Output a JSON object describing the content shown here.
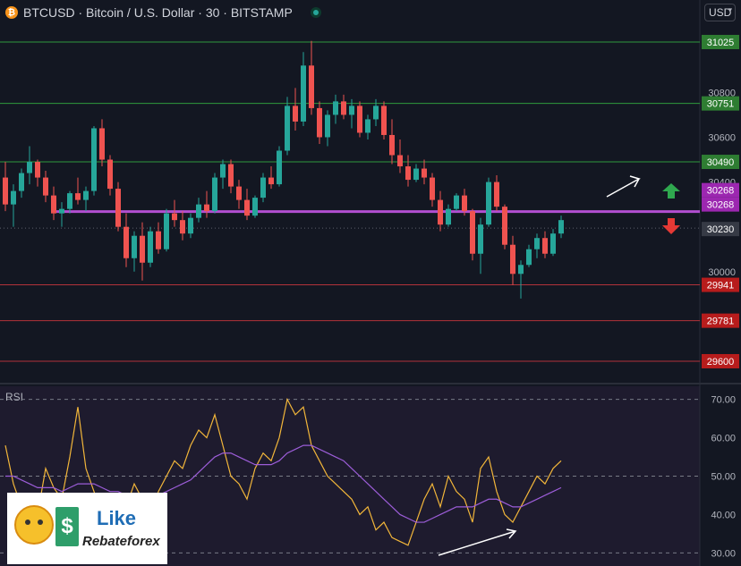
{
  "header": {
    "coin_symbol": "₿",
    "title": "BTCUSD · Bitcoin / U.S. Dollar · 30 · BITSTAMP",
    "status_icon": "market-open-dot-icon"
  },
  "currency_select": {
    "value": "USD",
    "icon": "chevron-down-icon"
  },
  "colors": {
    "background": "#131722",
    "up": "#26a69a",
    "down": "#ef5350",
    "support_line": "#b2323a",
    "resistance_line": "#2f9a3d",
    "pivot_line": "#b24fd1",
    "rsi": "#f2b63a",
    "rsi_ma": "#9c5dd8"
  },
  "price_axis": {
    "ticks": [
      "30800",
      "30600",
      "30400",
      "30200",
      "30000"
    ],
    "resistance_levels": [
      "31025",
      "30751",
      "30490"
    ],
    "pivot_labels": [
      "30268",
      "30268"
    ],
    "current_price": "30230",
    "support_levels": [
      "29941",
      "29781",
      "29600"
    ]
  },
  "chart_data": {
    "type": "candlestick",
    "symbol": "BTCUSD",
    "interval": "30",
    "ylim": [
      29560,
      31045
    ],
    "ohlc": [
      [
        30420,
        30490,
        30270,
        30300
      ],
      [
        30300,
        30390,
        30200,
        30360
      ],
      [
        30360,
        30460,
        30330,
        30440
      ],
      [
        30440,
        30560,
        30390,
        30490
      ],
      [
        30490,
        30500,
        30380,
        30420
      ],
      [
        30420,
        30450,
        30310,
        30340
      ],
      [
        30340,
        30380,
        30230,
        30260
      ],
      [
        30260,
        30310,
        30200,
        30280
      ],
      [
        30280,
        30360,
        30260,
        30350
      ],
      [
        30350,
        30420,
        30300,
        30320
      ],
      [
        30320,
        30380,
        30270,
        30360
      ],
      [
        30360,
        30650,
        30340,
        30640
      ],
      [
        30640,
        30680,
        30470,
        30500
      ],
      [
        30500,
        30520,
        30340,
        30370
      ],
      [
        30370,
        30400,
        30180,
        30200
      ],
      [
        30200,
        30260,
        30020,
        30060
      ],
      [
        30060,
        30180,
        30000,
        30160
      ],
      [
        30160,
        30220,
        29960,
        30040
      ],
      [
        30040,
        30200,
        30020,
        30180
      ],
      [
        30180,
        30220,
        30080,
        30100
      ],
      [
        30100,
        30280,
        30090,
        30260
      ],
      [
        30260,
        30320,
        30200,
        30230
      ],
      [
        30230,
        30270,
        30140,
        30170
      ],
      [
        30170,
        30260,
        30150,
        30240
      ],
      [
        30240,
        30330,
        30220,
        30300
      ],
      [
        30300,
        30360,
        30240,
        30270
      ],
      [
        30270,
        30440,
        30260,
        30420
      ],
      [
        30420,
        30500,
        30370,
        30480
      ],
      [
        30480,
        30500,
        30350,
        30380
      ],
      [
        30380,
        30410,
        30280,
        30320
      ],
      [
        30320,
        30370,
        30230,
        30250
      ],
      [
        30250,
        30340,
        30240,
        30330
      ],
      [
        30330,
        30440,
        30310,
        30420
      ],
      [
        30420,
        30470,
        30370,
        30390
      ],
      [
        30390,
        30560,
        30380,
        30540
      ],
      [
        30540,
        30780,
        30520,
        30740
      ],
      [
        30740,
        30820,
        30630,
        30670
      ],
      [
        30670,
        30980,
        30650,
        30920
      ],
      [
        30920,
        31030,
        30700,
        30730
      ],
      [
        30730,
        30760,
        30570,
        30600
      ],
      [
        30600,
        30720,
        30560,
        30700
      ],
      [
        30700,
        30790,
        30660,
        30760
      ],
      [
        30760,
        30790,
        30680,
        30700
      ],
      [
        30700,
        30770,
        30640,
        30740
      ],
      [
        30740,
        30760,
        30600,
        30620
      ],
      [
        30620,
        30700,
        30590,
        30680
      ],
      [
        30680,
        30770,
        30650,
        30740
      ],
      [
        30740,
        30760,
        30590,
        30610
      ],
      [
        30610,
        30680,
        30480,
        30520
      ],
      [
        30520,
        30590,
        30440,
        30470
      ],
      [
        30470,
        30520,
        30380,
        30410
      ],
      [
        30410,
        30480,
        30400,
        30460
      ],
      [
        30460,
        30500,
        30390,
        30420
      ],
      [
        30420,
        30440,
        30290,
        30320
      ],
      [
        30320,
        30360,
        30180,
        30210
      ],
      [
        30210,
        30300,
        30200,
        30280
      ],
      [
        30280,
        30350,
        30270,
        30340
      ],
      [
        30340,
        30370,
        30250,
        30270
      ],
      [
        30270,
        30280,
        30050,
        30080
      ],
      [
        30080,
        30240,
        29990,
        30210
      ],
      [
        30210,
        30420,
        30200,
        30400
      ],
      [
        30400,
        30430,
        30270,
        30290
      ],
      [
        30290,
        30300,
        30100,
        30120
      ],
      [
        30120,
        30160,
        29940,
        29990
      ],
      [
        29990,
        30050,
        29880,
        30030
      ],
      [
        30030,
        30120,
        30020,
        30100
      ],
      [
        30100,
        30170,
        30060,
        30150
      ],
      [
        30150,
        30180,
        30060,
        30080
      ],
      [
        30080,
        30190,
        30070,
        30170
      ],
      [
        30170,
        30250,
        30150,
        30230
      ]
    ],
    "horizontal_levels": [
      31025,
      30751,
      30490,
      30268,
      29941,
      29781,
      29600
    ],
    "current_price": 30230,
    "rsi": {
      "label": "RSI",
      "ylim": [
        28,
        72
      ],
      "ticks": [
        "70.00",
        "60.00",
        "50.00",
        "40.00",
        "30.00"
      ],
      "values": [
        58,
        48,
        42,
        36,
        40,
        52,
        47,
        44,
        55,
        68,
        52,
        46,
        40,
        38,
        44,
        42,
        48,
        44,
        40,
        46,
        50,
        54,
        52,
        58,
        62,
        60,
        66,
        58,
        50,
        48,
        44,
        52,
        56,
        54,
        60,
        70,
        66,
        68,
        58,
        54,
        50,
        48,
        46,
        44,
        40,
        42,
        36,
        38,
        34,
        33,
        32,
        38,
        44,
        48,
        42,
        50,
        46,
        44,
        38,
        52,
        55,
        46,
        40,
        38,
        42,
        46,
        50,
        48,
        52,
        54
      ],
      "ma_values": [
        50,
        50,
        49,
        48,
        47,
        47,
        47,
        46,
        47,
        48,
        48,
        48,
        47,
        46,
        46,
        45,
        45,
        45,
        45,
        45,
        46,
        47,
        48,
        49,
        51,
        53,
        55,
        56,
        56,
        55,
        54,
        53,
        53,
        53,
        54,
        56,
        57,
        58,
        58,
        57,
        56,
        55,
        54,
        52,
        50,
        48,
        46,
        44,
        42,
        40,
        39,
        38,
        38,
        39,
        40,
        41,
        42,
        42,
        42,
        43,
        44,
        44,
        43,
        42,
        42,
        43,
        44,
        45,
        46,
        47
      ]
    }
  }
}
